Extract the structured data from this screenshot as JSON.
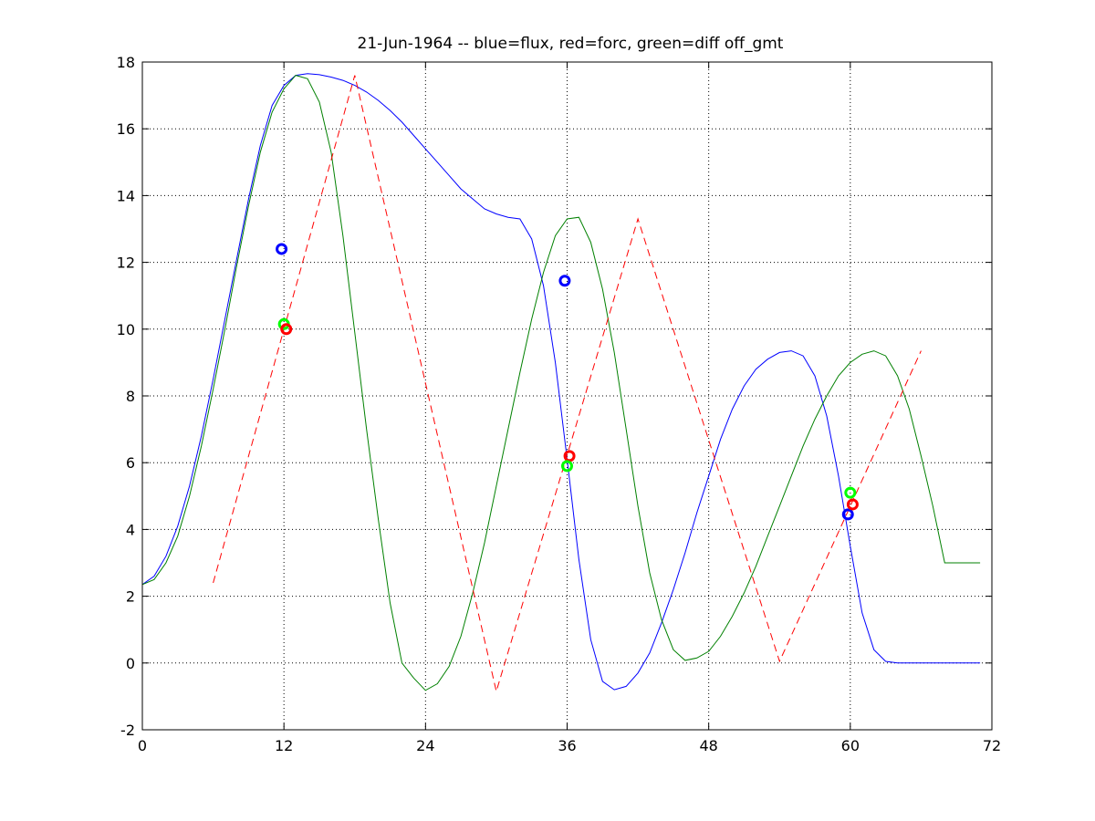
{
  "chart_data": {
    "type": "line",
    "title": "21-Jun-1964 -- blue=flux, red=forc, green=diff off_gmt",
    "xlabel": "",
    "ylabel": "",
    "xlim": [
      0,
      72
    ],
    "ylim": [
      -2,
      18
    ],
    "xticks": [
      0,
      12,
      24,
      36,
      48,
      60,
      72
    ],
    "yticks": [
      -2,
      0,
      2,
      4,
      6,
      8,
      10,
      12,
      14,
      16,
      18
    ],
    "grid": true,
    "series": [
      {
        "color": "#0000ff",
        "style": "solid",
        "x": [
          0,
          1,
          2,
          3,
          4,
          5,
          6,
          7,
          8,
          9,
          10,
          11,
          12,
          13,
          14,
          15,
          16,
          17,
          18,
          19,
          20,
          21,
          22,
          23,
          24,
          25,
          26,
          27,
          28,
          29,
          30,
          31,
          32,
          33,
          34,
          35,
          36,
          37,
          38,
          39,
          40,
          41,
          42,
          43,
          44,
          45,
          46,
          47,
          48,
          49,
          50,
          51,
          52,
          53,
          54,
          55,
          56,
          57,
          58,
          59,
          60,
          61,
          62,
          63,
          64,
          65,
          66,
          67,
          68,
          69,
          70,
          71
        ],
        "y": [
          2.35,
          2.6,
          3.2,
          4.1,
          5.3,
          6.8,
          8.5,
          10.3,
          12.1,
          13.9,
          15.5,
          16.7,
          17.3,
          17.6,
          17.65,
          17.62,
          17.55,
          17.45,
          17.3,
          17.1,
          16.85,
          16.55,
          16.2,
          15.8,
          15.4,
          15.0,
          14.6,
          14.2,
          13.9,
          13.6,
          13.45,
          13.35,
          13.3,
          12.7,
          11.3,
          9.0,
          6.1,
          3.1,
          0.7,
          -0.55,
          -0.8,
          -0.7,
          -0.3,
          0.3,
          1.2,
          2.2,
          3.3,
          4.5,
          5.6,
          6.7,
          7.6,
          8.3,
          8.8,
          9.1,
          9.3,
          9.35,
          9.2,
          8.6,
          7.4,
          5.6,
          3.5,
          1.5,
          0.4,
          0.05,
          0.0,
          0.0,
          0.0,
          0.0,
          0.0,
          0.0,
          0.0,
          0.0
        ]
      },
      {
        "color": "#008000",
        "style": "solid",
        "x": [
          0,
          1,
          2,
          3,
          4,
          5,
          6,
          7,
          8,
          9,
          10,
          11,
          12,
          13,
          14,
          15,
          16,
          17,
          18,
          19,
          20,
          21,
          22,
          23,
          24,
          25,
          26,
          27,
          28,
          29,
          30,
          31,
          32,
          33,
          34,
          35,
          36,
          37,
          38,
          39,
          40,
          41,
          42,
          43,
          44,
          45,
          46,
          47,
          48,
          49,
          50,
          51,
          52,
          53,
          54,
          55,
          56,
          57,
          58,
          59,
          60,
          61,
          62,
          63,
          64,
          65,
          66,
          67,
          68,
          69,
          70,
          71
        ],
        "y": [
          2.35,
          2.5,
          3.0,
          3.8,
          5.0,
          6.5,
          8.2,
          10.0,
          11.9,
          13.7,
          15.3,
          16.5,
          17.2,
          17.6,
          17.5,
          16.8,
          15.3,
          12.8,
          9.9,
          7.0,
          4.3,
          1.8,
          0.0,
          -0.45,
          -0.82,
          -0.62,
          -0.1,
          0.8,
          2.1,
          3.6,
          5.3,
          7.0,
          8.7,
          10.3,
          11.7,
          12.8,
          13.3,
          13.35,
          12.6,
          11.2,
          9.3,
          7.0,
          4.7,
          2.7,
          1.3,
          0.4,
          0.08,
          0.15,
          0.35,
          0.8,
          1.4,
          2.1,
          2.9,
          3.8,
          4.7,
          5.6,
          6.5,
          7.3,
          8.0,
          8.6,
          9.0,
          9.25,
          9.35,
          9.2,
          8.6,
          7.6,
          6.2,
          4.7,
          3.0,
          3.0,
          3.0,
          3.0
        ]
      },
      {
        "color": "#ff0000",
        "style": "dashed",
        "x": [
          6,
          18,
          30,
          42,
          54,
          66
        ],
        "y": [
          2.4,
          17.6,
          -0.85,
          13.3,
          0.05,
          9.35
        ]
      }
    ],
    "markers": [
      {
        "color": "#0000ff",
        "x": 11.8,
        "y": 12.4
      },
      {
        "color": "#00ff00",
        "x": 12.0,
        "y": 10.15
      },
      {
        "color": "#ff0000",
        "x": 12.2,
        "y": 10.0
      },
      {
        "color": "#0000ff",
        "x": 35.8,
        "y": 11.45
      },
      {
        "color": "#ff0000",
        "x": 36.2,
        "y": 6.2
      },
      {
        "color": "#00ff00",
        "x": 36.0,
        "y": 5.9
      },
      {
        "color": "#0000ff",
        "x": 59.8,
        "y": 4.45
      },
      {
        "color": "#00ff00",
        "x": 60.0,
        "y": 5.1
      },
      {
        "color": "#ff0000",
        "x": 60.2,
        "y": 4.75
      }
    ]
  }
}
